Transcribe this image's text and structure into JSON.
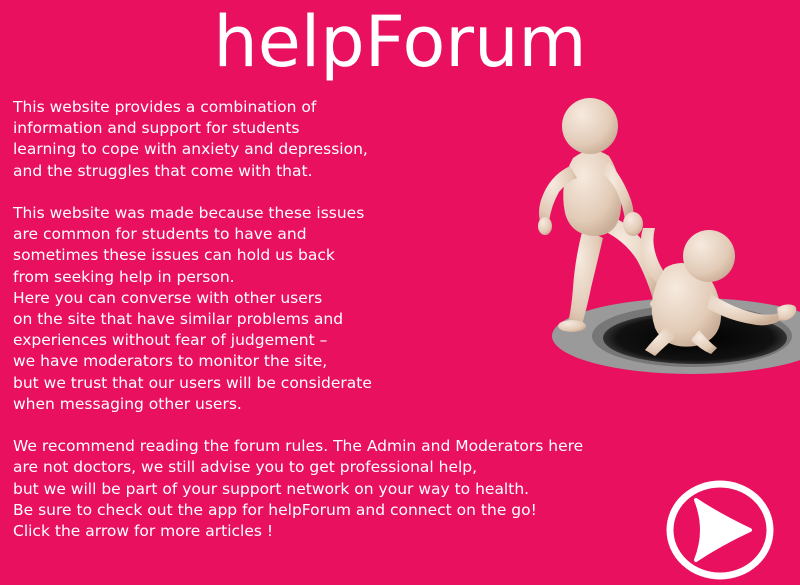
{
  "header": {
    "title": "helpForum"
  },
  "intro": {
    "paragraphs": [
      [
        "This website provides a combination of",
        "information and support for students",
        "learning to cope with anxiety and depression,",
        "and the struggles that come with that."
      ],
      [
        "This website was made because these issues",
        "are common for students to have and",
        "sometimes these issues can hold us back",
        "from seeking help in person.",
        "Here you can converse with other users",
        "on the site that have similar problems and",
        "experiences without fear of judgement –",
        "we have moderators to monitor the site,",
        "but we trust that our users will be considerate",
        "when messaging other users."
      ],
      [
        "We recommend reading the forum rules. The Admin and Moderators here",
        "are not doctors, we still advise you to get professional help,",
        "but we will be part of your support network on your way to health.",
        "Be sure to check out the app for helpForum and connect on the go!",
        "Click the arrow for more articles !"
      ]
    ]
  },
  "illustration": {
    "icon": "helping-hand-figures-icon"
  },
  "navigation": {
    "next_icon": "arrow-right-circle-icon"
  },
  "colors": {
    "background": "#e8105f",
    "text": "#ffffff",
    "figure": "#ecd9c9"
  }
}
